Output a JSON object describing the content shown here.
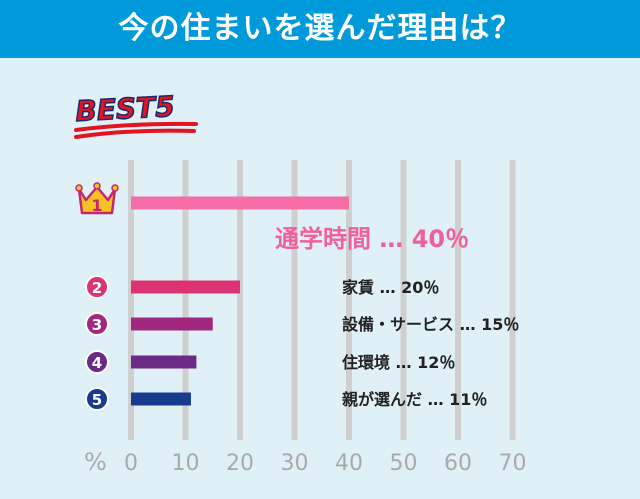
{
  "header": {
    "title": "今の住まいを選んだ理由は？"
  },
  "badge": {
    "text": "BEST5"
  },
  "colors": {
    "header_bg": "#0099d9",
    "panel_bg": "#dff0f7",
    "grid": "#cfcfcf",
    "tick": "#aaaaaa",
    "label": "#222222",
    "highlight": "#f0609a"
  },
  "chart_data": {
    "type": "bar",
    "orientation": "horizontal",
    "unit_label": "%",
    "xlim": [
      0,
      70
    ],
    "ticks": [
      "0",
      "10",
      "20",
      "30",
      "40",
      "50",
      "60",
      "70"
    ],
    "grid": true,
    "series": [
      {
        "rank": "1",
        "label": "通学時間",
        "display": "…",
        "value_text": "40％",
        "value": 40,
        "color": "#f56ea7",
        "rank_icon": "crown-icon"
      },
      {
        "rank": "2",
        "label": "家賃",
        "display": "…",
        "value_text": "20％",
        "value": 20,
        "color": "#dd3375",
        "rank_icon": "circle-number-icon"
      },
      {
        "rank": "3",
        "label": "設備・サービス",
        "display": "…",
        "value_text": "15％",
        "value": 15,
        "color": "#a2277f",
        "rank_icon": "circle-number-icon"
      },
      {
        "rank": "4",
        "label": "住環境",
        "display": "…",
        "value_text": "12％",
        "value": 12,
        "color": "#6b2a86",
        "rank_icon": "circle-number-icon"
      },
      {
        "rank": "5",
        "label": "親が選んだ",
        "display": "…",
        "value_text": "11％",
        "value": 11,
        "color": "#163b8f",
        "rank_icon": "circle-number-icon"
      }
    ]
  }
}
